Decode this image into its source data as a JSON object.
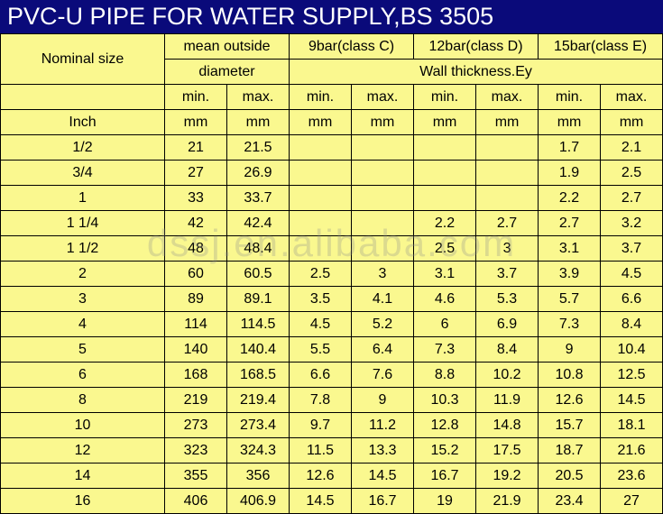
{
  "title": "PVC-U PIPE FOR WATER SUPPLY,BS 3505",
  "watermark": "dssj.en.alibaba.com",
  "headers": {
    "nominal_size": "Nominal size",
    "mean_outside": "mean outside",
    "diameter": "diameter",
    "wall_thickness": "Wall thickness.Ey",
    "class_c": "9bar(class C)",
    "class_d": "12bar(class D)",
    "class_e": "15bar(class E)",
    "min": "min.",
    "max": "max.",
    "inch": "Inch",
    "mm": "mm"
  },
  "rows": [
    {
      "size": "1/2",
      "dmin": "21",
      "dmax": "21.5",
      "cmin": "",
      "cmax": "",
      "ddmin": "",
      "ddmax": "",
      "emin": "1.7",
      "emax": "2.1"
    },
    {
      "size": "3/4",
      "dmin": "27",
      "dmax": "26.9",
      "cmin": "",
      "cmax": "",
      "ddmin": "",
      "ddmax": "",
      "emin": "1.9",
      "emax": "2.5"
    },
    {
      "size": "1",
      "dmin": "33",
      "dmax": "33.7",
      "cmin": "",
      "cmax": "",
      "ddmin": "",
      "ddmax": "",
      "emin": "2.2",
      "emax": "2.7"
    },
    {
      "size": "1 1/4",
      "dmin": "42",
      "dmax": "42.4",
      "cmin": "",
      "cmax": "",
      "ddmin": "2.2",
      "ddmax": "2.7",
      "emin": "2.7",
      "emax": "3.2"
    },
    {
      "size": "1 1/2",
      "dmin": "48",
      "dmax": "48.4",
      "cmin": "",
      "cmax": "",
      "ddmin": "2.5",
      "ddmax": "3",
      "emin": "3.1",
      "emax": "3.7"
    },
    {
      "size": "2",
      "dmin": "60",
      "dmax": "60.5",
      "cmin": "2.5",
      "cmax": "3",
      "ddmin": "3.1",
      "ddmax": "3.7",
      "emin": "3.9",
      "emax": "4.5"
    },
    {
      "size": "3",
      "dmin": "89",
      "dmax": "89.1",
      "cmin": "3.5",
      "cmax": "4.1",
      "ddmin": "4.6",
      "ddmax": "5.3",
      "emin": "5.7",
      "emax": "6.6"
    },
    {
      "size": "4",
      "dmin": "114",
      "dmax": "114.5",
      "cmin": "4.5",
      "cmax": "5.2",
      "ddmin": "6",
      "ddmax": "6.9",
      "emin": "7.3",
      "emax": "8.4"
    },
    {
      "size": "5",
      "dmin": "140",
      "dmax": "140.4",
      "cmin": "5.5",
      "cmax": "6.4",
      "ddmin": "7.3",
      "ddmax": "8.4",
      "emin": "9",
      "emax": "10.4"
    },
    {
      "size": "6",
      "dmin": "168",
      "dmax": "168.5",
      "cmin": "6.6",
      "cmax": "7.6",
      "ddmin": "8.8",
      "ddmax": "10.2",
      "emin": "10.8",
      "emax": "12.5"
    },
    {
      "size": "8",
      "dmin": "219",
      "dmax": "219.4",
      "cmin": "7.8",
      "cmax": "9",
      "ddmin": "10.3",
      "ddmax": "11.9",
      "emin": "12.6",
      "emax": "14.5"
    },
    {
      "size": "10",
      "dmin": "273",
      "dmax": "273.4",
      "cmin": "9.7",
      "cmax": "11.2",
      "ddmin": "12.8",
      "ddmax": "14.8",
      "emin": "15.7",
      "emax": "18.1"
    },
    {
      "size": "12",
      "dmin": "323",
      "dmax": "324.3",
      "cmin": "11.5",
      "cmax": "13.3",
      "ddmin": "15.2",
      "ddmax": "17.5",
      "emin": "18.7",
      "emax": "21.6"
    },
    {
      "size": "14",
      "dmin": "355",
      "dmax": "356",
      "cmin": "12.6",
      "cmax": "14.5",
      "ddmin": "16.7",
      "ddmax": "19.2",
      "emin": "20.5",
      "emax": "23.6"
    },
    {
      "size": "16",
      "dmin": "406",
      "dmax": "406.9",
      "cmin": "14.5",
      "cmax": "16.7",
      "ddmin": "19",
      "ddmax": "21.9",
      "emin": "23.4",
      "emax": "27"
    }
  ],
  "colors": {
    "title_bg": "#0a0a7a",
    "title_text": "#ffffff",
    "cell_bg": "#faf88f",
    "border": "#000000"
  }
}
